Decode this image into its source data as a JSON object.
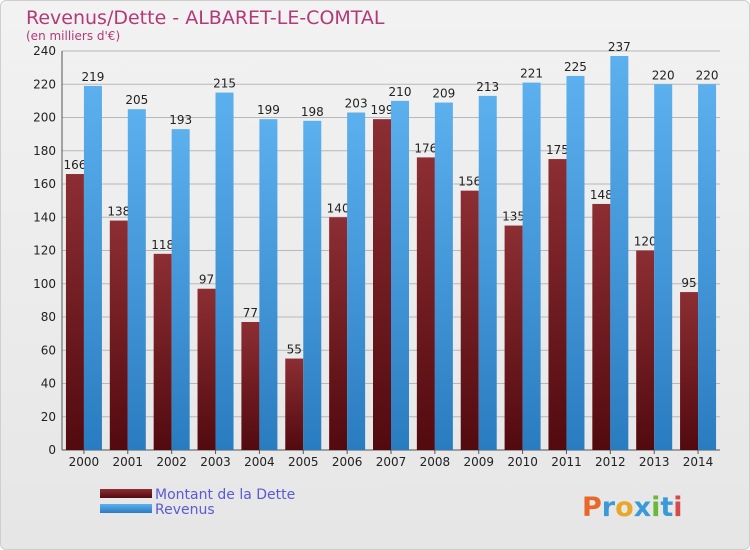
{
  "chart_data": {
    "type": "bar",
    "title": "Revenus/Dette - ALBARET-LE-COMTAL",
    "subtitle": "(en milliers d'€)",
    "categories": [
      "2000",
      "2001",
      "2002",
      "2003",
      "2004",
      "2005",
      "2006",
      "2007",
      "2008",
      "2009",
      "2010",
      "2011",
      "2012",
      "2013",
      "2014"
    ],
    "series": [
      {
        "name": "Montant de la Dette",
        "color": "#7a1f25",
        "values": [
          166,
          138,
          118,
          97,
          77,
          55,
          140,
          199,
          176,
          156,
          135,
          175,
          148,
          120,
          95
        ]
      },
      {
        "name": "Revenus",
        "color": "#4aa0e0",
        "values": [
          219,
          205,
          193,
          215,
          199,
          198,
          203,
          210,
          209,
          213,
          221,
          225,
          237,
          220,
          220
        ]
      }
    ],
    "ylim": [
      0,
      240
    ],
    "yticks": [
      0,
      20,
      40,
      60,
      80,
      100,
      120,
      140,
      160,
      180,
      200,
      220,
      240
    ],
    "grid": true,
    "legend": "bottom-left"
  },
  "logo": {
    "text": "Proxiti"
  }
}
